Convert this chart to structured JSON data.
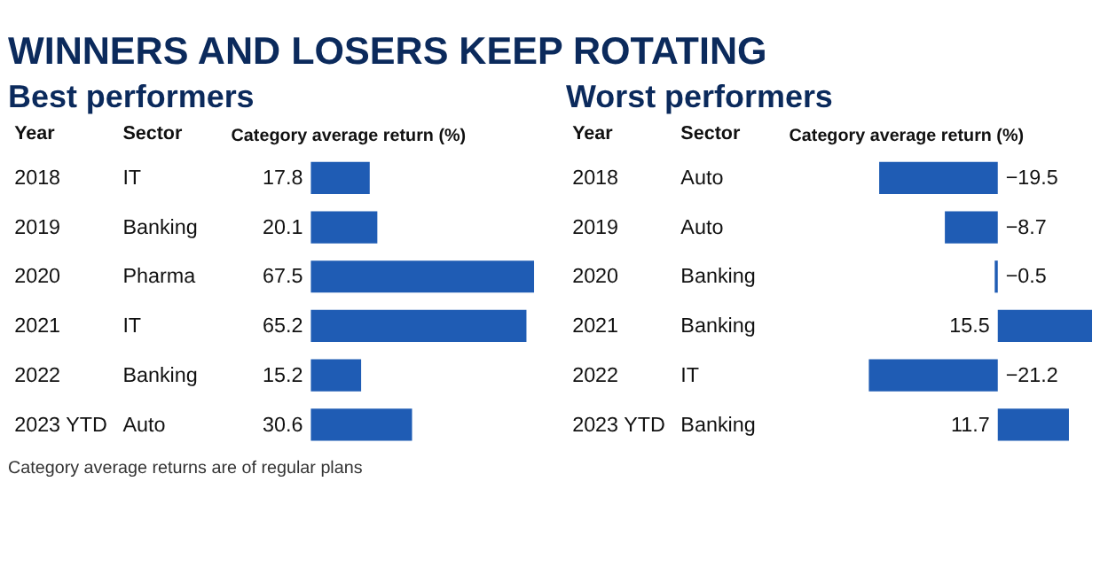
{
  "chart_data": [
    {
      "type": "bar",
      "orientation": "horizontal",
      "title": "WINNERS AND LOSERS KEEP ROTATING",
      "subtitle": "Best performers",
      "ylabel": "Year",
      "xlabel": "Category average return (%)",
      "categories": [
        "2018",
        "2019",
        "2020",
        "2021",
        "2022",
        "2023 YTD"
      ],
      "values": [
        17.8,
        20.1,
        67.5,
        65.2,
        15.2,
        30.6
      ],
      "color": "#1f5cb4",
      "value_labels": [
        "17.8",
        "20.1",
        "67.5",
        "65.2",
        "15.2",
        "30.6"
      ],
      "xlim": [
        0,
        67.5
      ],
      "tick_labels": false,
      "annotations": [
        "Sector",
        "IT",
        "Banking",
        "Pharma",
        "IT",
        "Banking",
        "Auto",
        "Category average returns are of regular plans"
      ]
    },
    {
      "type": "bar",
      "orientation": "horizontal",
      "title": "Worst performers",
      "ylabel": "Year",
      "xlabel": "Category average return (%)",
      "categories": [
        "2018",
        "2019",
        "2020",
        "2021",
        "2022",
        "2023 YTD"
      ],
      "values": [
        -19.5,
        -8.7,
        -0.5,
        15.5,
        -21.2,
        11.7
      ],
      "color": "#1f5cb4",
      "value_labels": [
        "−19.5",
        "−8.7",
        "−0.5",
        "15.5",
        "−21.2",
        "11.7"
      ],
      "xlim": [
        -21.2,
        15.5
      ],
      "tick_labels": false,
      "annotations": [
        "Sector",
        "Auto",
        "Auto",
        "Banking",
        "Banking",
        "IT",
        "Banking"
      ]
    }
  ]
}
